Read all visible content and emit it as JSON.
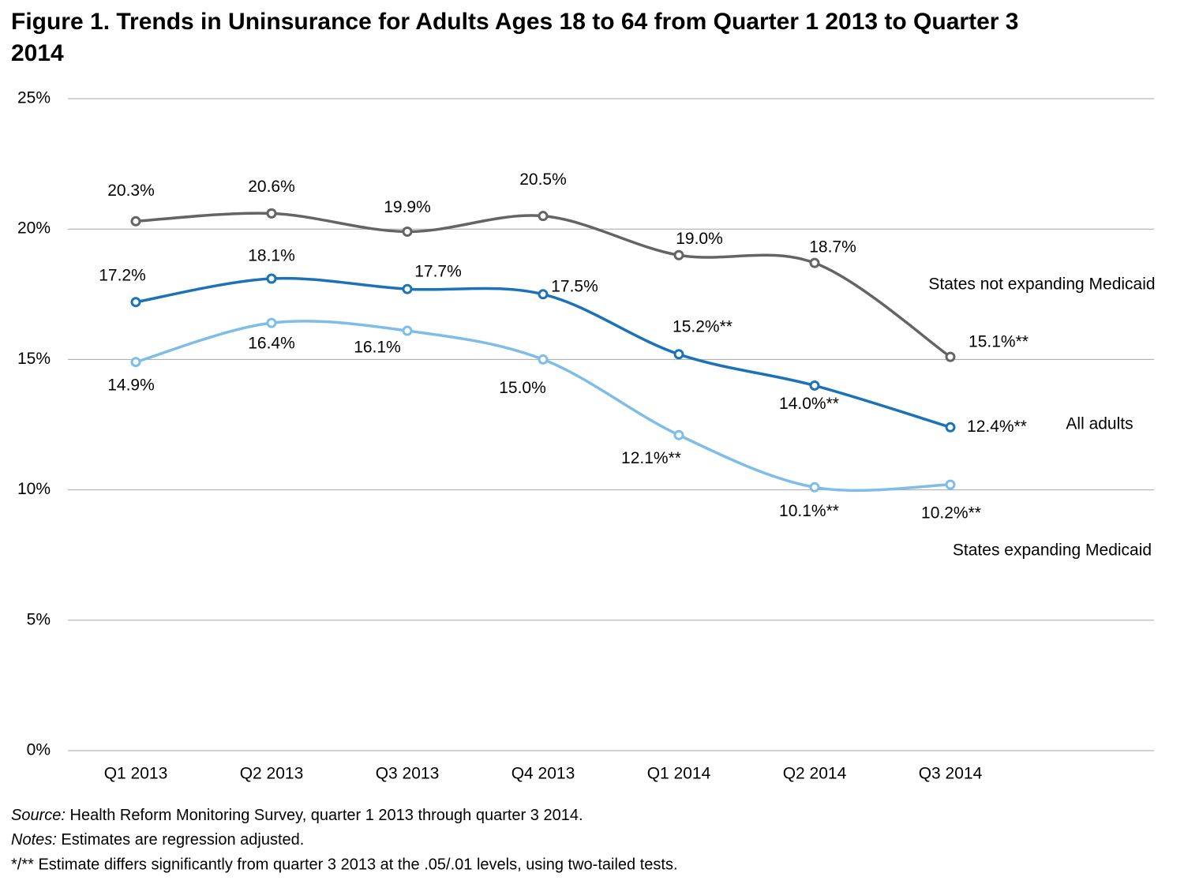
{
  "chart_data": {
    "type": "line",
    "title": "Figure 1. Trends in Uninsurance for Adults Ages 18 to 64 from Quarter 1 2013 to Quarter 3 2014",
    "categories": [
      "Q1 2013",
      "Q2 2013",
      "Q3 2013",
      "Q4 2013",
      "Q1 2014",
      "Q2 2014",
      "Q3 2014",
      null
    ],
    "ylim": [
      0,
      25
    ],
    "yticks": [
      {
        "value": 0,
        "label": "0%"
      },
      {
        "value": 5,
        "label": "5%"
      },
      {
        "value": 10,
        "label": "10%"
      },
      {
        "value": 15,
        "label": "15%"
      },
      {
        "value": 20,
        "label": "20%"
      },
      {
        "value": 25,
        "label": "25%"
      }
    ],
    "grid": true,
    "series": [
      {
        "name": "States not expanding Medicaid",
        "color": "#646464",
        "values": [
          20.3,
          20.6,
          19.9,
          20.5,
          19.0,
          18.7,
          15.1,
          null
        ],
        "value_labels": [
          "20.3%",
          "20.6%",
          "19.9%",
          "20.5%",
          "19.0%",
          "18.7%",
          "15.1%**",
          null
        ]
      },
      {
        "name": "All adults",
        "color": "#1c72b8",
        "values": [
          17.2,
          18.1,
          17.7,
          17.5,
          15.2,
          14.0,
          12.4,
          null
        ],
        "value_labels": [
          "17.2%",
          "18.1%",
          "17.7%",
          "17.5%",
          "15.2%**",
          "14.0%**",
          "12.4%**",
          null
        ]
      },
      {
        "name": "States expanding Medicaid",
        "color": "#7dbde8",
        "values": [
          14.9,
          16.4,
          16.1,
          15.0,
          12.1,
          10.1,
          10.2,
          null
        ],
        "value_labels": [
          "14.9%",
          "16.4%",
          "16.1%",
          "15.0%",
          "12.1%**",
          "10.1%**",
          "10.2%**",
          null
        ]
      }
    ],
    "footer": {
      "source_label": "Source:",
      "source": "Health Reform Monitoring Survey, quarter 1 2013 through quarter 3 2014.",
      "notes_label": "Notes:",
      "notes": "Estimates are regression adjusted.",
      "footnote": "*/** Estimate differs significantly from quarter 3 2013 at the .05/.01 levels, using two-tailed tests."
    }
  }
}
